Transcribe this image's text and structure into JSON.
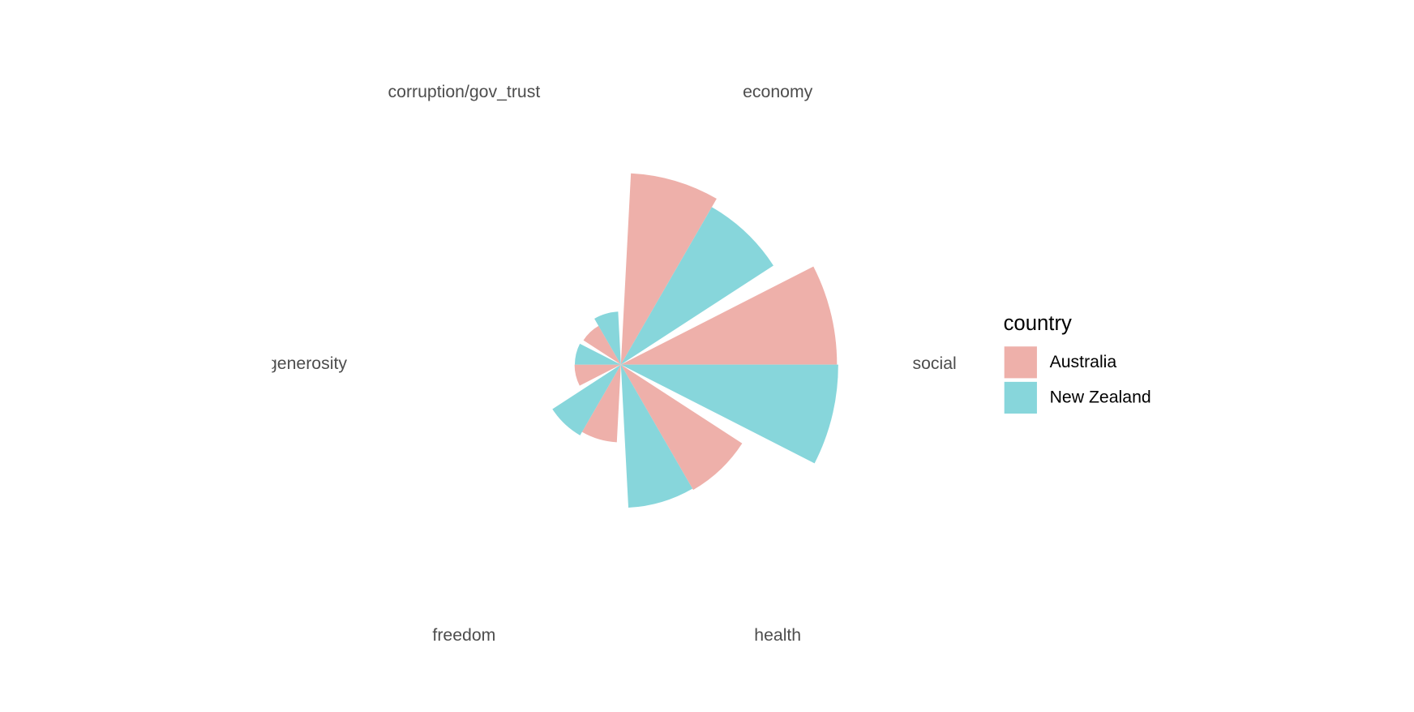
{
  "chart_data": {
    "type": "polar-bar",
    "categories": [
      "economy",
      "social",
      "health",
      "freedom",
      "generosity",
      "corruption/gov_trust"
    ],
    "series": [
      {
        "name": "Australia",
        "color": "#EEB0AA",
        "values": [
          1.372,
          1.548,
          1.036,
          0.557,
          0.332,
          0.32
        ]
      },
      {
        "name": "New Zealand",
        "color": "#87D6DB",
        "values": [
          1.303,
          1.557,
          1.026,
          0.585,
          0.33,
          0.38
        ]
      }
    ],
    "legend_title": "country",
    "legend_position": "right"
  }
}
